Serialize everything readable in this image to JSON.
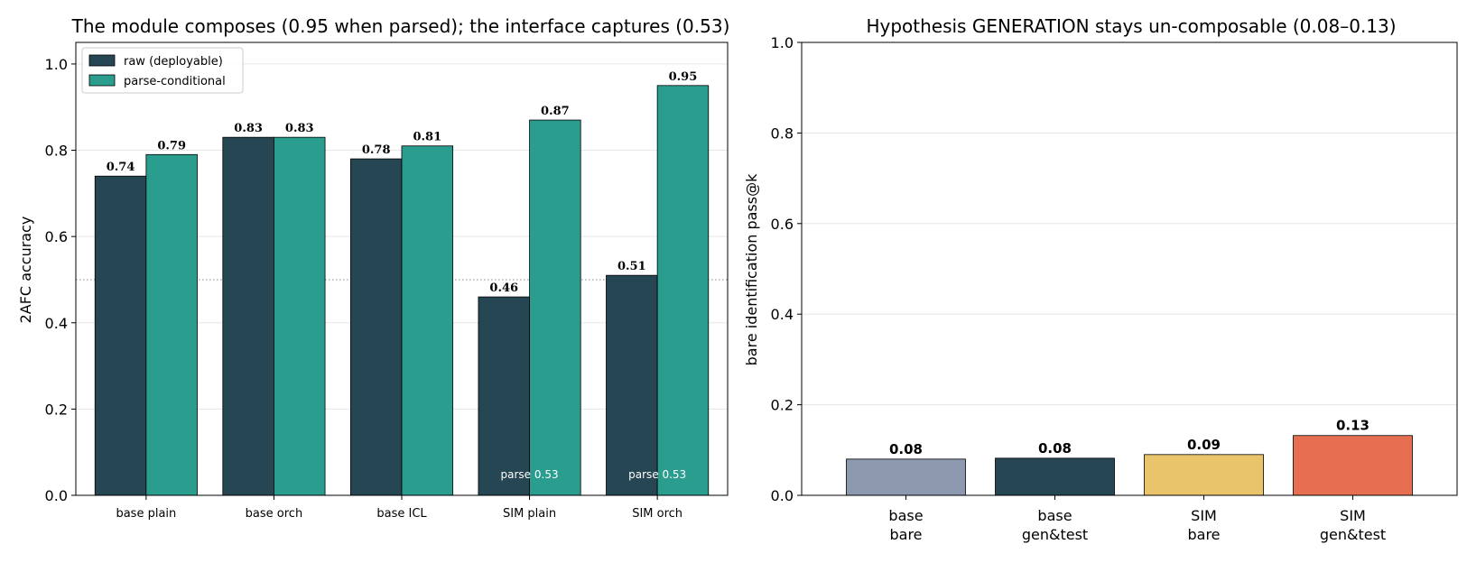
{
  "colors": {
    "raw": "#264653",
    "parse": "#2a9d8f",
    "grid": "#e6e6e6",
    "reference_line": "#888888",
    "right_bars": [
      "#8d99ae",
      "#264653",
      "#e9c46a",
      "#e76f51"
    ]
  },
  "chart_data": [
    {
      "type": "bar",
      "title": "The module composes (0.95 when parsed); the interface captures (0.53)",
      "xlabel": "",
      "ylabel": "2AFC accuracy",
      "ylim": [
        0,
        1.05
      ],
      "yticks": [
        "0.0",
        "0.2",
        "0.4",
        "0.6",
        "0.8",
        "1.0"
      ],
      "grid": "y",
      "legend": "top-left",
      "reference_line": 0.5,
      "categories": [
        "base plain",
        "base orch",
        "base ICL",
        "SIM plain",
        "SIM orch"
      ],
      "series": [
        {
          "name": "raw (deployable)",
          "values": [
            0.74,
            0.83,
            0.78,
            0.46,
            0.51
          ],
          "labels": [
            "0.74",
            "0.83",
            "0.78",
            "0.46",
            "0.51"
          ]
        },
        {
          "name": "parse-conditional",
          "values": [
            0.79,
            0.83,
            0.81,
            0.87,
            0.95
          ],
          "labels": [
            "0.79",
            "0.83",
            "0.81",
            "0.87",
            "0.95"
          ]
        }
      ],
      "annotations": [
        {
          "category": 3,
          "text": "parse 0.53"
        },
        {
          "category": 4,
          "text": "parse 0.53"
        }
      ]
    },
    {
      "type": "bar",
      "title": "Hypothesis GENERATION stays un-composable (0.08–0.13)",
      "xlabel": "",
      "ylabel": "bare identification pass@k",
      "ylim": [
        0,
        1.0
      ],
      "yticks": [
        "0.0",
        "0.2",
        "0.4",
        "0.6",
        "0.8",
        "1.0"
      ],
      "grid": "y",
      "categories": [
        [
          "base",
          "bare"
        ],
        [
          "base",
          "gen&test"
        ],
        [
          "SIM",
          "bare"
        ],
        [
          "SIM",
          "gen&test"
        ]
      ],
      "values": [
        0.08,
        0.082,
        0.09,
        0.132
      ],
      "labels": [
        "0.08",
        "0.08",
        "0.09",
        "0.13"
      ]
    }
  ]
}
